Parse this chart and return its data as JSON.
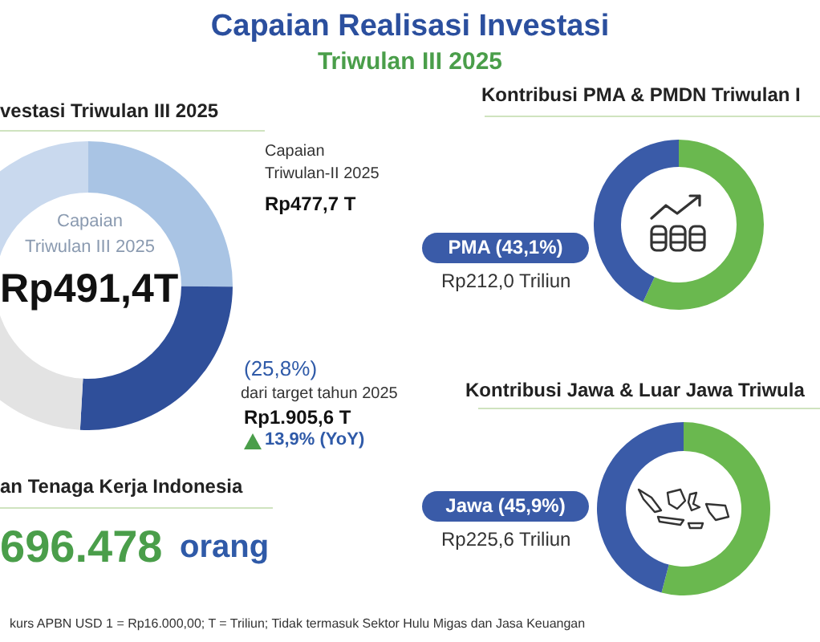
{
  "chart_data": [
    {
      "type": "other",
      "title": "Capaian Realisasi Investasi",
      "subtitle": "Triwulan III 2025"
    },
    {
      "type": "donut",
      "title": "vestasi Triwulan III 2025",
      "categories": [
        null,
        null,
        null,
        null
      ],
      "values": [
        25.1,
        25.8,
        24.7,
        24.4
      ],
      "colors": [
        "#a9c4e4",
        "#2f4f9a",
        "#e3e3e3",
        "#c9d9ee"
      ],
      "annotations": [
        "Capaian Triwulan III 2025",
        "Rp491,4T",
        "Capaian Triwulan-II 2025",
        "Rp477,7 T",
        "(25,8%)",
        "dari target tahun 2025",
        "Rp1.905,6 T",
        "13,9% (YoY)"
      ]
    },
    {
      "type": "donut",
      "title": "Kontribusi PMA & PMDN Triwulan I",
      "categories": [
        null,
        "PMA (43,1%)"
      ],
      "values": [
        56.9,
        43.1
      ],
      "colors": [
        "#6ab84f",
        "#3a5ba8"
      ],
      "annotations": [
        "Rp212,0 Triliun"
      ]
    },
    {
      "type": "donut",
      "title": "Kontribusi Jawa & Luar Jawa Triwula",
      "categories": [
        null,
        "Jawa (45,9%)"
      ],
      "values": [
        54.1,
        45.9
      ],
      "colors": [
        "#6ab84f",
        "#3a5ba8"
      ],
      "annotations": [
        "Rp225,6 Triliun"
      ]
    },
    {
      "type": "other",
      "title": "an Tenaga Kerja Indonesia",
      "annotations": [
        "696.478",
        "orang",
        "kurs APBN USD 1 = Rp16.000,00; T = Triliun;  Tidak termasuk Sektor Hulu Migas dan Jasa Keuangan"
      ]
    }
  ]
}
